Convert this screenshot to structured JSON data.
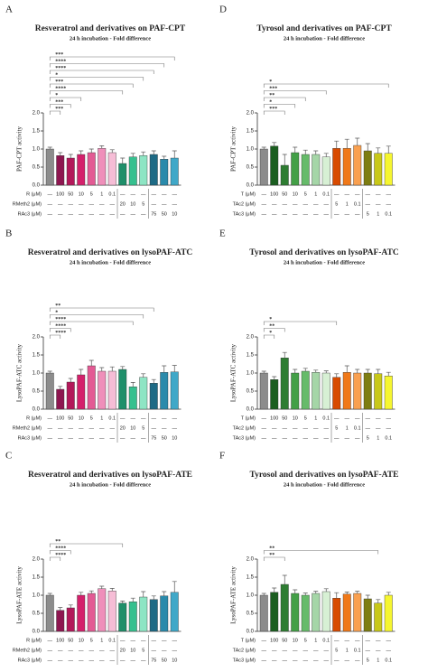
{
  "chart_data": [
    {
      "type": "bar",
      "panel": "A",
      "title": "Resveratrol and derivatives on PAF-CPT",
      "subtitle": "24 h incubation - Fold difference",
      "ylabel": "PAF-CPT activity",
      "ylim": [
        0,
        2
      ],
      "yticks": [
        {
          "value": 0,
          "label": "0.0"
        },
        {
          "value": 0.5,
          "label": "0.5"
        },
        {
          "value": 1,
          "label": "1.0"
        },
        {
          "value": 1.5,
          "label": "1.5"
        },
        {
          "value": 2,
          "label": "2.0"
        }
      ],
      "values": [
        1.0,
        0.82,
        0.75,
        0.85,
        0.9,
        1.02,
        0.9,
        0.6,
        0.78,
        0.82,
        0.85,
        0.72,
        0.75
      ],
      "errors": [
        0.05,
        0.08,
        0.1,
        0.1,
        0.1,
        0.07,
        0.08,
        0.15,
        0.1,
        0.1,
        0.1,
        0.08,
        0.2
      ],
      "colors": [
        "#8c8c8c",
        "#8e1650",
        "#b3185a",
        "#d4206b",
        "#e35a94",
        "#ef8fba",
        "#f6bdd6",
        "#1f8f6a",
        "#36c08f",
        "#8ee5c4",
        "#1d6a85",
        "#2a8aab",
        "#40a8c8"
      ],
      "significance": [
        {
          "to": 1,
          "label": "***"
        },
        {
          "to": 2,
          "label": "***"
        },
        {
          "to": 3,
          "label": "*"
        },
        {
          "to": 7,
          "label": "****"
        },
        {
          "to": 8,
          "label": "***"
        },
        {
          "to": 9,
          "label": "*"
        },
        {
          "to": 10,
          "label": "****"
        },
        {
          "to": 11,
          "label": "****"
        },
        {
          "to": 12,
          "label": "***"
        }
      ],
      "table": [
        {
          "label": "R (μM)",
          "cells": [
            "—",
            "100",
            "50",
            "10",
            "5",
            "1",
            "0.1",
            "—",
            "—",
            "—",
            "—",
            "—",
            "—"
          ]
        },
        {
          "label": "RMeth2 (μM)",
          "cells": [
            "—",
            "—",
            "—",
            "—",
            "—",
            "—",
            "—",
            "20",
            "10",
            "5",
            "—",
            "—",
            "—"
          ]
        },
        {
          "label": "RAc3 (μM)",
          "cells": [
            "—",
            "—",
            "—",
            "—",
            "—",
            "—",
            "—",
            "—",
            "—",
            "—",
            "75",
            "50",
            "10"
          ]
        }
      ]
    },
    {
      "type": "bar",
      "panel": "B",
      "title": "Resveratrol and derivatives on lysoPAF-ATC",
      "subtitle": "24 h incubation - Fold difference",
      "ylabel": "LysoPAF-ATC activity",
      "ylim": [
        0,
        2
      ],
      "yticks": [
        {
          "value": 0,
          "label": "0.0"
        },
        {
          "value": 0.5,
          "label": "0.5"
        },
        {
          "value": 1,
          "label": "1.0"
        },
        {
          "value": 1.5,
          "label": "1.5"
        },
        {
          "value": 2,
          "label": "2.0"
        }
      ],
      "values": [
        1.0,
        0.55,
        0.75,
        0.95,
        1.2,
        1.05,
        1.05,
        1.1,
        0.62,
        0.88,
        0.72,
        1.02,
        1.03
      ],
      "errors": [
        0.05,
        0.08,
        0.1,
        0.15,
        0.15,
        0.1,
        0.12,
        0.08,
        0.12,
        0.1,
        0.1,
        0.18,
        0.18
      ],
      "colors": [
        "#8c8c8c",
        "#8e1650",
        "#b3185a",
        "#d4206b",
        "#e35a94",
        "#ef8fba",
        "#f6bdd6",
        "#1f8f6a",
        "#36c08f",
        "#8ee5c4",
        "#1d6a85",
        "#2a8aab",
        "#40a8c8"
      ],
      "significance": [
        {
          "to": 1,
          "label": "****"
        },
        {
          "to": 2,
          "label": "****"
        },
        {
          "to": 8,
          "label": "****"
        },
        {
          "to": 9,
          "label": "*"
        },
        {
          "to": 10,
          "label": "**"
        }
      ],
      "table": [
        {
          "label": "R (μM)",
          "cells": [
            "—",
            "100",
            "50",
            "10",
            "5",
            "1",
            "0.1",
            "—",
            "—",
            "—",
            "—",
            "—",
            "—"
          ]
        },
        {
          "label": "RMeth2 (μM)",
          "cells": [
            "—",
            "—",
            "—",
            "—",
            "—",
            "—",
            "—",
            "20",
            "10",
            "5",
            "—",
            "—",
            "—"
          ]
        },
        {
          "label": "RAc3 (μM)",
          "cells": [
            "—",
            "—",
            "—",
            "—",
            "—",
            "—",
            "—",
            "—",
            "—",
            "—",
            "75",
            "50",
            "10"
          ]
        }
      ]
    },
    {
      "type": "bar",
      "panel": "C",
      "title": "Resveratrol and derivatives on lysoPAF-ATE",
      "subtitle": "24 h incubation - Fold difference",
      "ylabel": "LysoPAF-ATE activity",
      "ylim": [
        0,
        2
      ],
      "yticks": [
        {
          "value": 0,
          "label": "0.0"
        },
        {
          "value": 0.5,
          "label": "0.5"
        },
        {
          "value": 1,
          "label": "1.0"
        },
        {
          "value": 1.5,
          "label": "1.5"
        },
        {
          "value": 2,
          "label": "2.0"
        }
      ],
      "values": [
        1.0,
        0.58,
        0.65,
        1.0,
        1.05,
        1.18,
        1.12,
        0.78,
        0.82,
        0.95,
        0.88,
        0.98,
        1.08
      ],
      "errors": [
        0.05,
        0.08,
        0.08,
        0.08,
        0.07,
        0.07,
        0.07,
        0.06,
        0.1,
        0.15,
        0.1,
        0.12,
        0.3
      ],
      "colors": [
        "#8c8c8c",
        "#8e1650",
        "#b3185a",
        "#d4206b",
        "#e35a94",
        "#ef8fba",
        "#f6bdd6",
        "#1f8f6a",
        "#36c08f",
        "#8ee5c4",
        "#1d6a85",
        "#2a8aab",
        "#40a8c8"
      ],
      "significance": [
        {
          "to": 1,
          "label": "****"
        },
        {
          "to": 2,
          "label": "****"
        },
        {
          "to": 7,
          "label": "**"
        }
      ],
      "table": [
        {
          "label": "R (μM)",
          "cells": [
            "—",
            "100",
            "50",
            "10",
            "5",
            "1",
            "0.1",
            "—",
            "—",
            "—",
            "—",
            "—",
            "—"
          ]
        },
        {
          "label": "RMeth2 (μM)",
          "cells": [
            "—",
            "—",
            "—",
            "—",
            "—",
            "—",
            "—",
            "20",
            "10",
            "5",
            "—",
            "—",
            "—"
          ]
        },
        {
          "label": "RAc3 (μM)",
          "cells": [
            "—",
            "—",
            "—",
            "—",
            "—",
            "—",
            "—",
            "—",
            "—",
            "—",
            "75",
            "50",
            "10"
          ]
        }
      ]
    },
    {
      "type": "bar",
      "panel": "D",
      "title": "Tyrosol and derivatives on PAF-CPT",
      "subtitle": "24 h incubation - Fold difference",
      "ylabel": "PAF-CPT activity",
      "ylim": [
        0,
        2
      ],
      "yticks": [
        {
          "value": 0,
          "label": "0.0"
        },
        {
          "value": 0.5,
          "label": "0.5"
        },
        {
          "value": 1,
          "label": "1.0"
        },
        {
          "value": 1.5,
          "label": "1.5"
        },
        {
          "value": 2,
          "label": "2.0"
        }
      ],
      "values": [
        1.0,
        1.08,
        0.55,
        0.9,
        0.85,
        0.85,
        0.78,
        1.02,
        1.02,
        1.1,
        0.95,
        0.88,
        0.88
      ],
      "errors": [
        0.05,
        0.1,
        0.3,
        0.15,
        0.12,
        0.1,
        0.1,
        0.2,
        0.25,
        0.2,
        0.2,
        0.15,
        0.2
      ],
      "colors": [
        "#8c8c8c",
        "#1b5e20",
        "#2e7d32",
        "#43a047",
        "#66bb6a",
        "#a5d6a7",
        "#d7f0d4",
        "#d84a00",
        "#f07818",
        "#f9a050",
        "#7d7d12",
        "#c8c818",
        "#f6f630"
      ],
      "significance": [
        {
          "to": 2,
          "label": "***"
        },
        {
          "to": 3,
          "label": "*"
        },
        {
          "to": 4,
          "label": "**"
        },
        {
          "to": 6,
          "label": "***"
        },
        {
          "to": 12,
          "label": "*"
        }
      ],
      "table": [
        {
          "label": "T (μM)",
          "cells": [
            "—",
            "100",
            "50",
            "10",
            "5",
            "1",
            "0.1",
            "—",
            "—",
            "—",
            "—",
            "—",
            "—"
          ]
        },
        {
          "label": "TAc2 (μM)",
          "cells": [
            "—",
            "—",
            "—",
            "—",
            "—",
            "—",
            "—",
            "5",
            "1",
            "0.1",
            "—",
            "—",
            "—"
          ]
        },
        {
          "label": "TAc3 (μM)",
          "cells": [
            "—",
            "—",
            "—",
            "—",
            "—",
            "—",
            "—",
            "—",
            "—",
            "—",
            "5",
            "1",
            "0.1"
          ]
        }
      ]
    },
    {
      "type": "bar",
      "panel": "E",
      "title": "Tyrosol and derivatives on lysoPAF-ATC",
      "subtitle": "24 h incubation - Fold difference",
      "ylabel": "LysoPAF-ATC activity",
      "ylim": [
        0,
        2
      ],
      "yticks": [
        {
          "value": 0,
          "label": "0.0"
        },
        {
          "value": 0.5,
          "label": "0.5"
        },
        {
          "value": 1,
          "label": "1.0"
        },
        {
          "value": 1.5,
          "label": "1.5"
        },
        {
          "value": 2,
          "label": "2.0"
        }
      ],
      "values": [
        1.0,
        0.82,
        1.42,
        1.0,
        1.05,
        1.02,
        1.0,
        0.88,
        1.02,
        1.0,
        1.0,
        0.98,
        0.92
      ],
      "errors": [
        0.05,
        0.08,
        0.15,
        0.1,
        0.08,
        0.06,
        0.06,
        0.1,
        0.18,
        0.1,
        0.1,
        0.12,
        0.1
      ],
      "colors": [
        "#8c8c8c",
        "#1b5e20",
        "#2e7d32",
        "#43a047",
        "#66bb6a",
        "#a5d6a7",
        "#d7f0d4",
        "#d84a00",
        "#f07818",
        "#f9a050",
        "#7d7d12",
        "#c8c818",
        "#f6f630"
      ],
      "significance": [
        {
          "to": 1,
          "label": "*"
        },
        {
          "to": 2,
          "label": "**"
        },
        {
          "to": 7,
          "label": "*"
        }
      ],
      "table": [
        {
          "label": "T (μM)",
          "cells": [
            "—",
            "100",
            "50",
            "10",
            "5",
            "1",
            "0.1",
            "—",
            "—",
            "—",
            "—",
            "—",
            "—"
          ]
        },
        {
          "label": "TAc2 (μM)",
          "cells": [
            "—",
            "—",
            "—",
            "—",
            "—",
            "—",
            "—",
            "5",
            "1",
            "0.1",
            "—",
            "—",
            "—"
          ]
        },
        {
          "label": "TAc3 (μM)",
          "cells": [
            "—",
            "—",
            "—",
            "—",
            "—",
            "—",
            "—",
            "—",
            "—",
            "—",
            "5",
            "1",
            "0.1"
          ]
        }
      ]
    },
    {
      "type": "bar",
      "panel": "F",
      "title": "Tyrosol and derivatives on lysoPAF-ATE",
      "subtitle": "24 h incubation - Fold difference",
      "ylabel": "LysoPAF-ATE activity",
      "ylim": [
        0,
        2
      ],
      "yticks": [
        {
          "value": 0,
          "label": "0.0"
        },
        {
          "value": 0.5,
          "label": "0.5"
        },
        {
          "value": 1,
          "label": "1.0"
        },
        {
          "value": 1.5,
          "label": "1.5"
        },
        {
          "value": 2,
          "label": "2.0"
        }
      ],
      "values": [
        1.0,
        1.08,
        1.3,
        1.05,
        1.0,
        1.05,
        1.1,
        0.92,
        1.03,
        1.05,
        0.9,
        0.78,
        1.0
      ],
      "errors": [
        0.05,
        0.12,
        0.25,
        0.1,
        0.06,
        0.06,
        0.08,
        0.15,
        0.06,
        0.06,
        0.1,
        0.1,
        0.08
      ],
      "colors": [
        "#8c8c8c",
        "#1b5e20",
        "#2e7d32",
        "#43a047",
        "#66bb6a",
        "#a5d6a7",
        "#d7f0d4",
        "#d84a00",
        "#f07818",
        "#f9a050",
        "#7d7d12",
        "#c8c818",
        "#f6f630"
      ],
      "significance": [
        {
          "to": 2,
          "label": "**"
        },
        {
          "to": 11,
          "label": "**"
        }
      ],
      "table": [
        {
          "label": "T (μM)",
          "cells": [
            "—",
            "100",
            "50",
            "10",
            "5",
            "1",
            "0.1",
            "—",
            "—",
            "—",
            "—",
            "—",
            "—"
          ]
        },
        {
          "label": "TAc2 (μM)",
          "cells": [
            "—",
            "—",
            "—",
            "—",
            "—",
            "—",
            "—",
            "5",
            "1",
            "0.1",
            "—",
            "—",
            "—"
          ]
        },
        {
          "label": "TAc3 (μM)",
          "cells": [
            "—",
            "—",
            "—",
            "—",
            "—",
            "—",
            "—",
            "—",
            "—",
            "—",
            "5",
            "1",
            "0.1"
          ]
        }
      ]
    }
  ]
}
